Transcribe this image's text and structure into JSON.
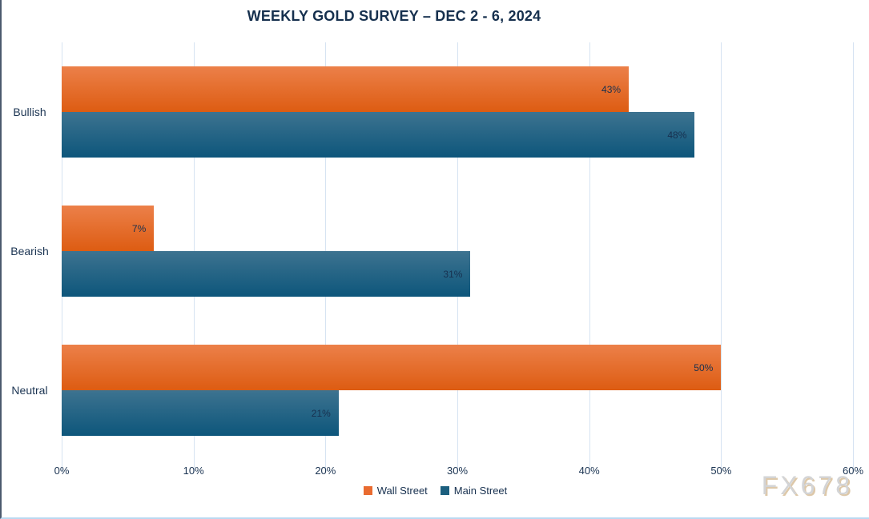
{
  "title": "WEEKLY GOLD SURVEY – DEC 2 - 6, 2024",
  "watermark": "FX678",
  "chart_data": {
    "type": "bar",
    "orientation": "horizontal",
    "title": "WEEKLY GOLD SURVEY – DEC 2 - 6, 2024",
    "categories": [
      "Bullish",
      "Bearish",
      "Neutral"
    ],
    "series": [
      {
        "name": "Wall Street",
        "values": [
          43,
          7,
          50
        ],
        "color_top": "#ec8049",
        "color_bottom": "#dd5c12",
        "legend_color": "#e96b30"
      },
      {
        "name": "Main Street",
        "values": [
          48,
          31,
          21
        ],
        "color_top": "#3d7390",
        "color_bottom": "#0d567b",
        "legend_color": "#1c5f7f"
      }
    ],
    "value_suffix": "%",
    "data_labels": [
      [
        "43%",
        "7%",
        "50%"
      ],
      [
        "48%",
        "31%",
        "21%"
      ]
    ],
    "xlim": [
      0,
      60
    ],
    "x_ticks": [
      "0%",
      "10%",
      "20%",
      "30%",
      "40%",
      "50%",
      "60%"
    ],
    "grid": true,
    "gridline_color": "#d6e3f2",
    "legend_position": "bottom-center",
    "label_color": "#1c3553"
  }
}
